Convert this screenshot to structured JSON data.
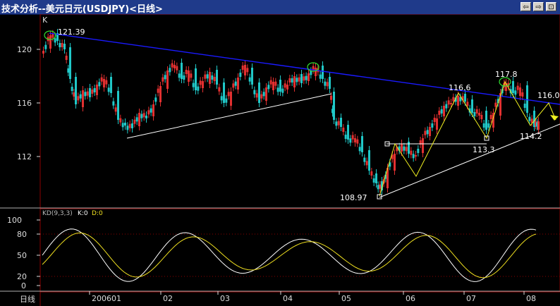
{
  "window": {
    "title": "技术分析--美元日元(USDJPY)<日线>",
    "buttons": [
      "⇦",
      "⇨",
      "⊡"
    ]
  },
  "main_panel": {
    "corner_label": "K",
    "price_ticks": [
      "120",
      "116",
      "112"
    ],
    "annotations": {
      "high_1": "121.39",
      "peak_2": "116.6",
      "peak_3": "117.8",
      "trough_1": "108.97",
      "trough_2": "113.3",
      "trough_3": "114.2",
      "target": "116.0"
    }
  },
  "kd_panel": {
    "legend_name": "KD(9,3,3)",
    "legend_k": "K:0",
    "legend_d": "D:0",
    "ticks": [
      "100",
      "80",
      "50",
      "20",
      "0"
    ]
  },
  "time_axis": {
    "period_label": "日线",
    "months": [
      "200601",
      "02",
      "03",
      "04",
      "05",
      "06",
      "07",
      "08"
    ]
  },
  "colors": {
    "up_candle": "#e23030",
    "down_candle": "#20c8c8",
    "resistance_line": "#1a1aff",
    "support_line": "#ffffff",
    "zigzag": "#f0f020",
    "k_line": "#ffffff",
    "d_line": "#f0e020",
    "marker_circle": "#30e030",
    "grid": "#8b0000"
  }
}
